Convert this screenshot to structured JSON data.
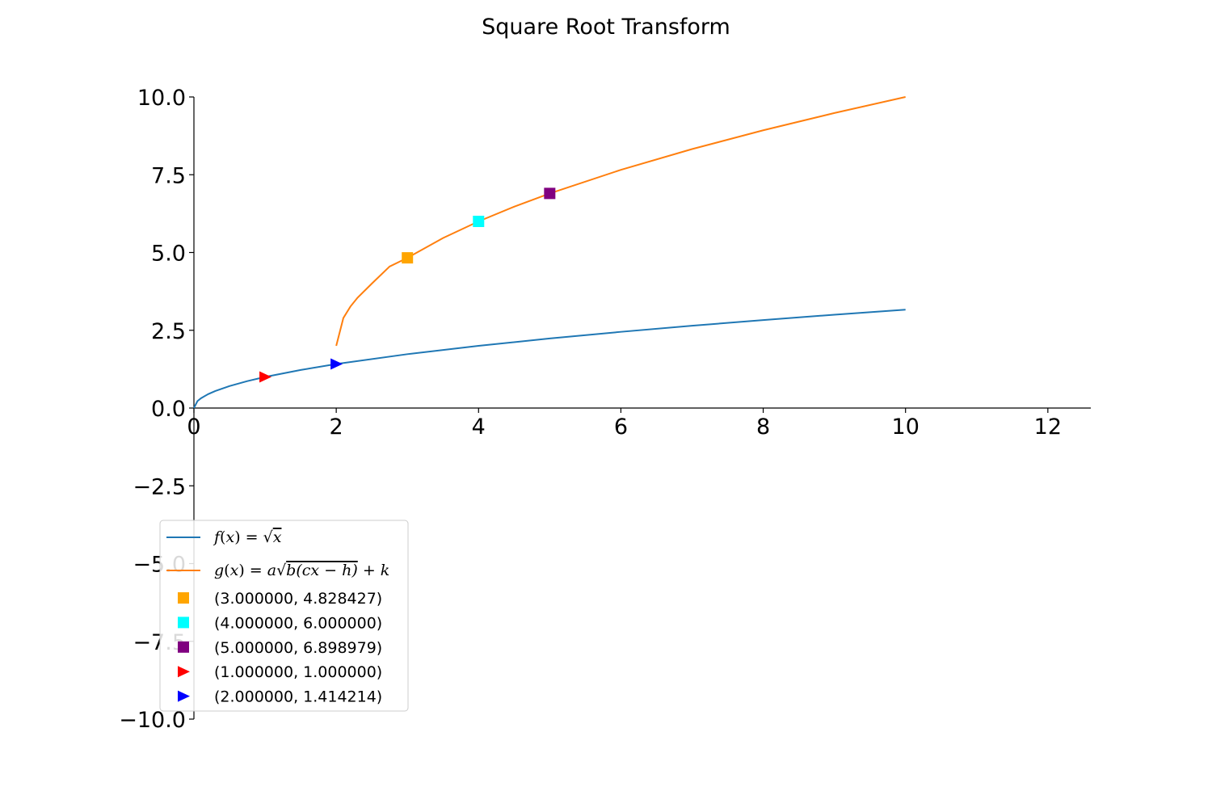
{
  "chart_data": {
    "type": "line",
    "title": "Square Root Transform",
    "xlabel": "",
    "ylabel": "",
    "xlim": [
      0,
      12.6
    ],
    "ylim": [
      -10,
      10
    ],
    "x_ticks": [
      0,
      2,
      4,
      6,
      8,
      10,
      12
    ],
    "x_tick_labels": [
      "0",
      "2",
      "4",
      "6",
      "8",
      "10",
      "12"
    ],
    "y_ticks": [
      10.0,
      7.5,
      5.0,
      2.5,
      0.0,
      -2.5,
      -5.0,
      -7.5,
      -10.0
    ],
    "y_tick_labels": [
      "10.0",
      "7.5",
      "5.0",
      "2.5",
      "0.0",
      "−2.5",
      "−5.0",
      "−7.5",
      "−10.0"
    ],
    "grid": false,
    "legend_placement": "lower-left",
    "series": [
      {
        "name": "f(x) = √x",
        "label_parts": {
          "fn": "f",
          "arg": "x",
          "rhs": "x"
        },
        "color": "#1f77b4",
        "kind": "line",
        "x": [
          0,
          0.05,
          0.1,
          0.2,
          0.3,
          0.5,
          0.75,
          1,
          1.5,
          2,
          3,
          4,
          5,
          6,
          7,
          8,
          9,
          10
        ],
        "y": [
          0,
          0.2236,
          0.3162,
          0.4472,
          0.5477,
          0.7071,
          0.866,
          1.0,
          1.2247,
          1.4142,
          1.7321,
          2.0,
          2.2361,
          2.4495,
          2.6458,
          2.8284,
          3.0,
          3.1623
        ]
      },
      {
        "name": "g(x) = a√(b(cx − h)) + k",
        "label_parts": {
          "fn": "g",
          "arg": "x",
          "coef": "a",
          "inner": "b(cx − h)",
          "tail": "+ k"
        },
        "color": "#ff7f0e",
        "kind": "line",
        "x": [
          2,
          2.1,
          2.2,
          2.3,
          2.5,
          2.75,
          3,
          3.5,
          4,
          4.5,
          5,
          6,
          7,
          8,
          9,
          10
        ],
        "y": [
          2.0,
          2.8944,
          3.2649,
          3.5492,
          4.0,
          4.5495,
          4.8284,
          5.4641,
          6.0,
          6.4721,
          6.899,
          7.6569,
          8.3246,
          8.9282,
          9.4833,
          10.0
        ]
      }
    ],
    "markers": [
      {
        "label": "(3.000000, 4.828427)",
        "x": 3,
        "y": 4.828427,
        "color": "#ffa500",
        "shape": "square"
      },
      {
        "label": "(4.000000, 6.000000)",
        "x": 4,
        "y": 6.0,
        "color": "#00ffff",
        "shape": "square"
      },
      {
        "label": "(5.000000, 6.898979)",
        "x": 5,
        "y": 6.898979,
        "color": "#800080",
        "shape": "square"
      },
      {
        "label": "(1.000000, 1.000000)",
        "x": 1,
        "y": 1.0,
        "color": "#ff0000",
        "shape": "triangle-right"
      },
      {
        "label": "(2.000000, 1.414214)",
        "x": 2,
        "y": 1.414214,
        "color": "#0000ff",
        "shape": "triangle-right"
      }
    ]
  }
}
